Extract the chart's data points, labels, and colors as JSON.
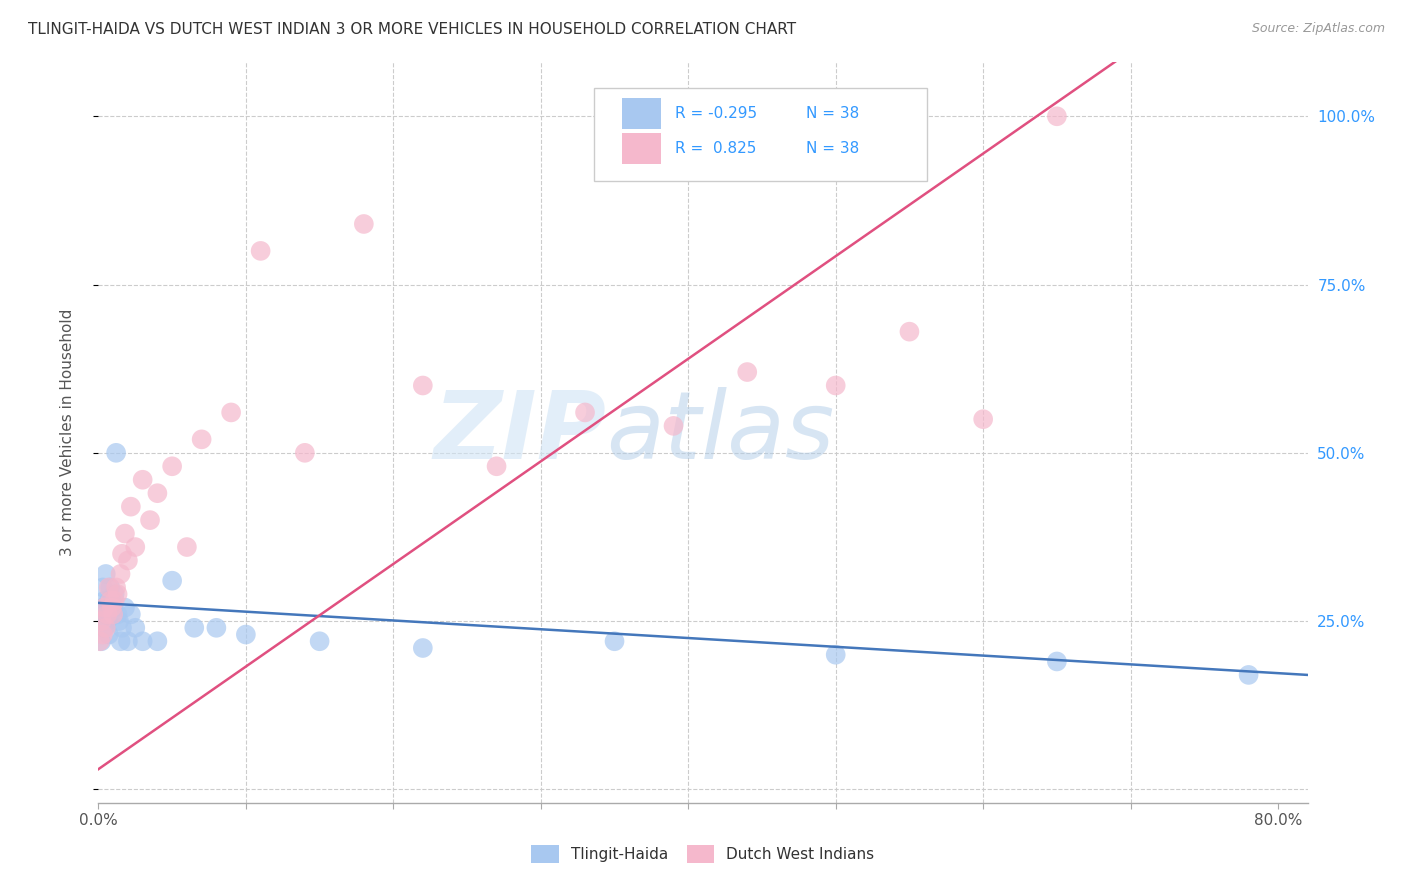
{
  "title": "TLINGIT-HAIDA VS DUTCH WEST INDIAN 3 OR MORE VEHICLES IN HOUSEHOLD CORRELATION CHART",
  "source": "Source: ZipAtlas.com",
  "ylabel": "3 or more Vehicles in Household",
  "xlim": [
    0.0,
    0.82
  ],
  "ylim": [
    -0.02,
    1.08
  ],
  "tlingit_color": "#a8c8f0",
  "dutch_color": "#f5b8cc",
  "tlingit_line_color": "#4477bb",
  "dutch_line_color": "#e05080",
  "watermark_zip": "ZIP",
  "watermark_atlas": "atlas",
  "background_color": "#ffffff",
  "tlingit_x": [
    0.001,
    0.002,
    0.003,
    0.003,
    0.004,
    0.004,
    0.005,
    0.005,
    0.006,
    0.006,
    0.007,
    0.007,
    0.008,
    0.008,
    0.009,
    0.01,
    0.011,
    0.012,
    0.013,
    0.014,
    0.015,
    0.016,
    0.018,
    0.02,
    0.022,
    0.025,
    0.03,
    0.04,
    0.05,
    0.065,
    0.08,
    0.1,
    0.15,
    0.22,
    0.35,
    0.5,
    0.65,
    0.78
  ],
  "tlingit_y": [
    0.25,
    0.22,
    0.27,
    0.3,
    0.28,
    0.24,
    0.26,
    0.32,
    0.27,
    0.25,
    0.28,
    0.23,
    0.26,
    0.3,
    0.28,
    0.27,
    0.29,
    0.5,
    0.26,
    0.25,
    0.22,
    0.24,
    0.27,
    0.22,
    0.26,
    0.24,
    0.22,
    0.22,
    0.31,
    0.24,
    0.24,
    0.23,
    0.22,
    0.21,
    0.22,
    0.2,
    0.19,
    0.17
  ],
  "dutch_x": [
    0.001,
    0.002,
    0.003,
    0.004,
    0.005,
    0.006,
    0.007,
    0.008,
    0.009,
    0.01,
    0.011,
    0.012,
    0.013,
    0.015,
    0.016,
    0.018,
    0.02,
    0.022,
    0.025,
    0.03,
    0.035,
    0.04,
    0.05,
    0.06,
    0.07,
    0.09,
    0.11,
    0.14,
    0.18,
    0.22,
    0.27,
    0.33,
    0.39,
    0.44,
    0.5,
    0.55,
    0.6,
    0.65
  ],
  "dutch_y": [
    0.22,
    0.25,
    0.23,
    0.27,
    0.24,
    0.26,
    0.3,
    0.28,
    0.27,
    0.26,
    0.28,
    0.3,
    0.29,
    0.32,
    0.35,
    0.38,
    0.34,
    0.42,
    0.36,
    0.46,
    0.4,
    0.44,
    0.48,
    0.36,
    0.52,
    0.56,
    0.8,
    0.5,
    0.84,
    0.6,
    0.48,
    0.56,
    0.54,
    0.62,
    0.6,
    0.68,
    0.55,
    1.0
  ]
}
